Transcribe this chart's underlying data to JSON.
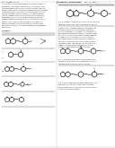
{
  "background_color": "#ffffff",
  "left_header": "US 20120083454 A1",
  "right_header": "Apr. 5, 2012",
  "text_color": "#222222",
  "line_color": "#555555",
  "struct_color": "#333333"
}
